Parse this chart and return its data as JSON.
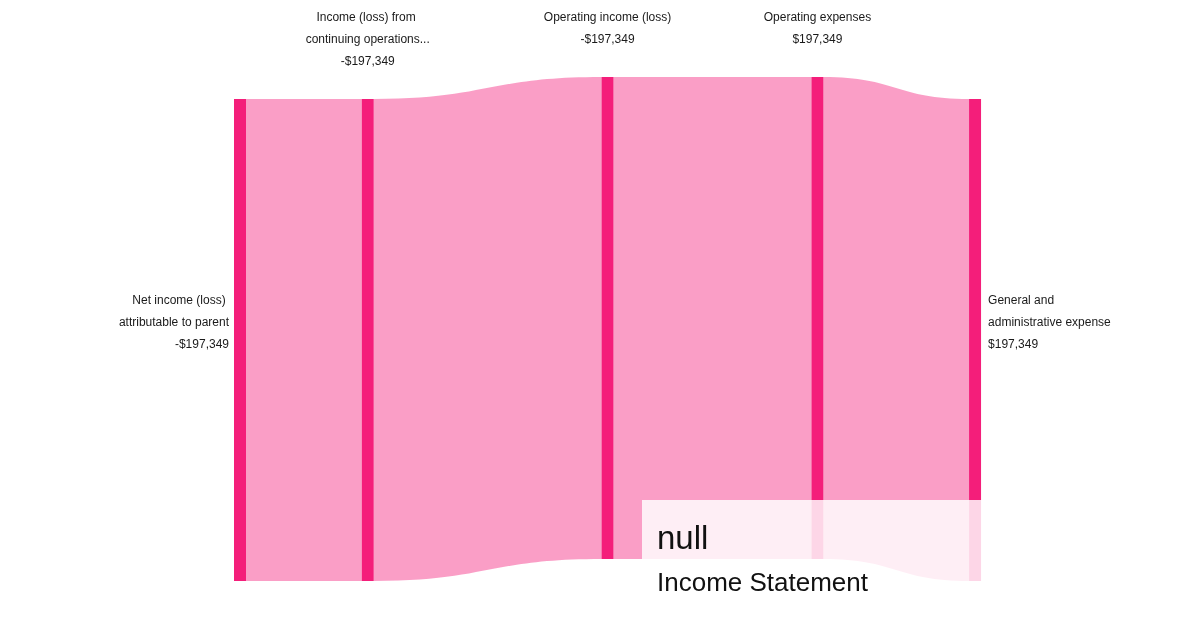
{
  "chart_data": {
    "type": "other",
    "title": "null",
    "subtitle": "Income Statement",
    "categories": [
      "Net income (loss) attributable to parent",
      "Income (loss) from continuing operations...",
      "Operating income (loss)",
      "Operating expenses",
      "General and administrative expense"
    ],
    "values": [
      -197349,
      -197349,
      -197349,
      197349,
      197349
    ],
    "value_labels": [
      "-$197,349",
      "-$197,349",
      "-$197,349",
      "$197,349",
      "$197,349"
    ],
    "colors": [
      "#f41e7a",
      "#f41e7a",
      "#f41e7a",
      "#f41e7a",
      "#f41e7a"
    ]
  }
}
